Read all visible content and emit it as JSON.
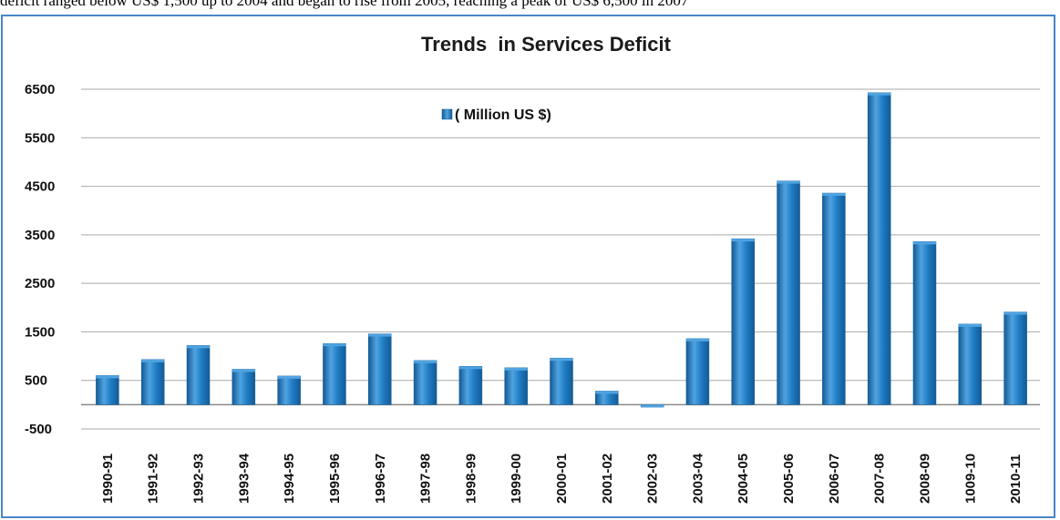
{
  "caption": "deficit ranged below US$ 1,500 up to 2004 and began to rise from 2005, reaching a peak of US$ 6,500 in 2007",
  "colors": {
    "bar": "#1f7cc4",
    "bar_light": "#4fa3e0",
    "bar_dark": "#135a95",
    "frame": "#4a86c8",
    "grid": "#a9a9a9"
  },
  "chart_data": {
    "type": "bar",
    "title": "Trends  in Services Deficit",
    "legend": "( Million US $)",
    "legend_position": "top-center",
    "grid": true,
    "categories": [
      "1990-91",
      "1991-92",
      "1992-93",
      "1993-94",
      "1994-95",
      "1995-96",
      "1996-97",
      "1997-98",
      "1998-99",
      "1999-00",
      "2000-01",
      "2001-02",
      "2002-03",
      "2003-04",
      "2004-05",
      "2005-06",
      "2006-07",
      "2007-08",
      "2008-09",
      "1009-10",
      "2010-11"
    ],
    "values": [
      600,
      930,
      1220,
      730,
      590,
      1260,
      1460,
      910,
      790,
      760,
      960,
      280,
      -50,
      1360,
      3420,
      4610,
      4360,
      6430,
      3360,
      1660,
      1910
    ],
    "yticks": [
      "6500",
      "5500",
      "4500",
      "3500",
      "2500",
      "1500",
      "500",
      "-500"
    ],
    "ylim": [
      -500,
      6500
    ]
  }
}
